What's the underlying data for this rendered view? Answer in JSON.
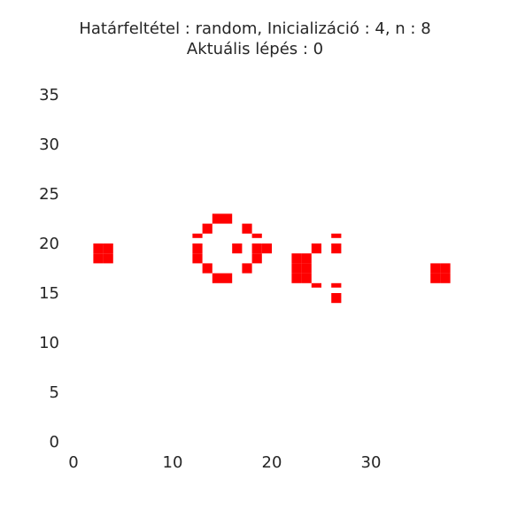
{
  "chart_data": {
    "type": "heatmap",
    "title": "Határfeltétel : random, Inicializáció : 4, n : 8",
    "subtitle": "Aktuális lépés : 0",
    "xlabel": "",
    "ylabel": "",
    "xlim": [
      0,
      40
    ],
    "ylim": [
      0,
      36
    ],
    "x_ticks": [
      "0",
      "10",
      "20",
      "30"
    ],
    "y_ticks": [
      "0",
      "5",
      "10",
      "15",
      "20",
      "25",
      "30",
      "35"
    ],
    "x_tick_values": [
      0,
      10,
      20,
      30
    ],
    "y_tick_values": [
      0,
      5,
      10,
      15,
      20,
      25,
      30,
      35
    ],
    "grid": false,
    "cell_color": "#ff0000",
    "background": "#ffffff",
    "live_cells": [
      [
        2,
        18
      ],
      [
        3,
        18
      ],
      [
        2,
        19
      ],
      [
        3,
        19
      ],
      [
        14,
        22
      ],
      [
        15,
        22
      ],
      [
        13,
        21
      ],
      [
        17,
        21
      ],
      [
        12,
        20
      ],
      [
        18,
        20
      ],
      [
        12,
        19
      ],
      [
        16,
        19
      ],
      [
        18,
        19
      ],
      [
        19,
        19
      ],
      [
        12,
        18
      ],
      [
        18,
        18
      ],
      [
        13,
        17
      ],
      [
        17,
        17
      ],
      [
        14,
        16
      ],
      [
        15,
        16
      ],
      [
        22,
        18
      ],
      [
        23,
        18
      ],
      [
        22,
        17
      ],
      [
        23,
        17
      ],
      [
        22,
        16
      ],
      [
        23,
        16
      ],
      [
        24,
        19
      ],
      [
        24,
        15
      ],
      [
        26,
        20
      ],
      [
        26,
        19
      ],
      [
        26,
        15
      ],
      [
        26,
        14
      ],
      [
        36,
        16
      ],
      [
        37,
        16
      ],
      [
        36,
        17
      ],
      [
        37,
        17
      ]
    ],
    "thin_marks": [
      [
        12,
        20
      ],
      [
        18,
        20
      ],
      [
        26,
        20
      ],
      [
        24,
        15
      ],
      [
        26,
        15
      ]
    ]
  }
}
